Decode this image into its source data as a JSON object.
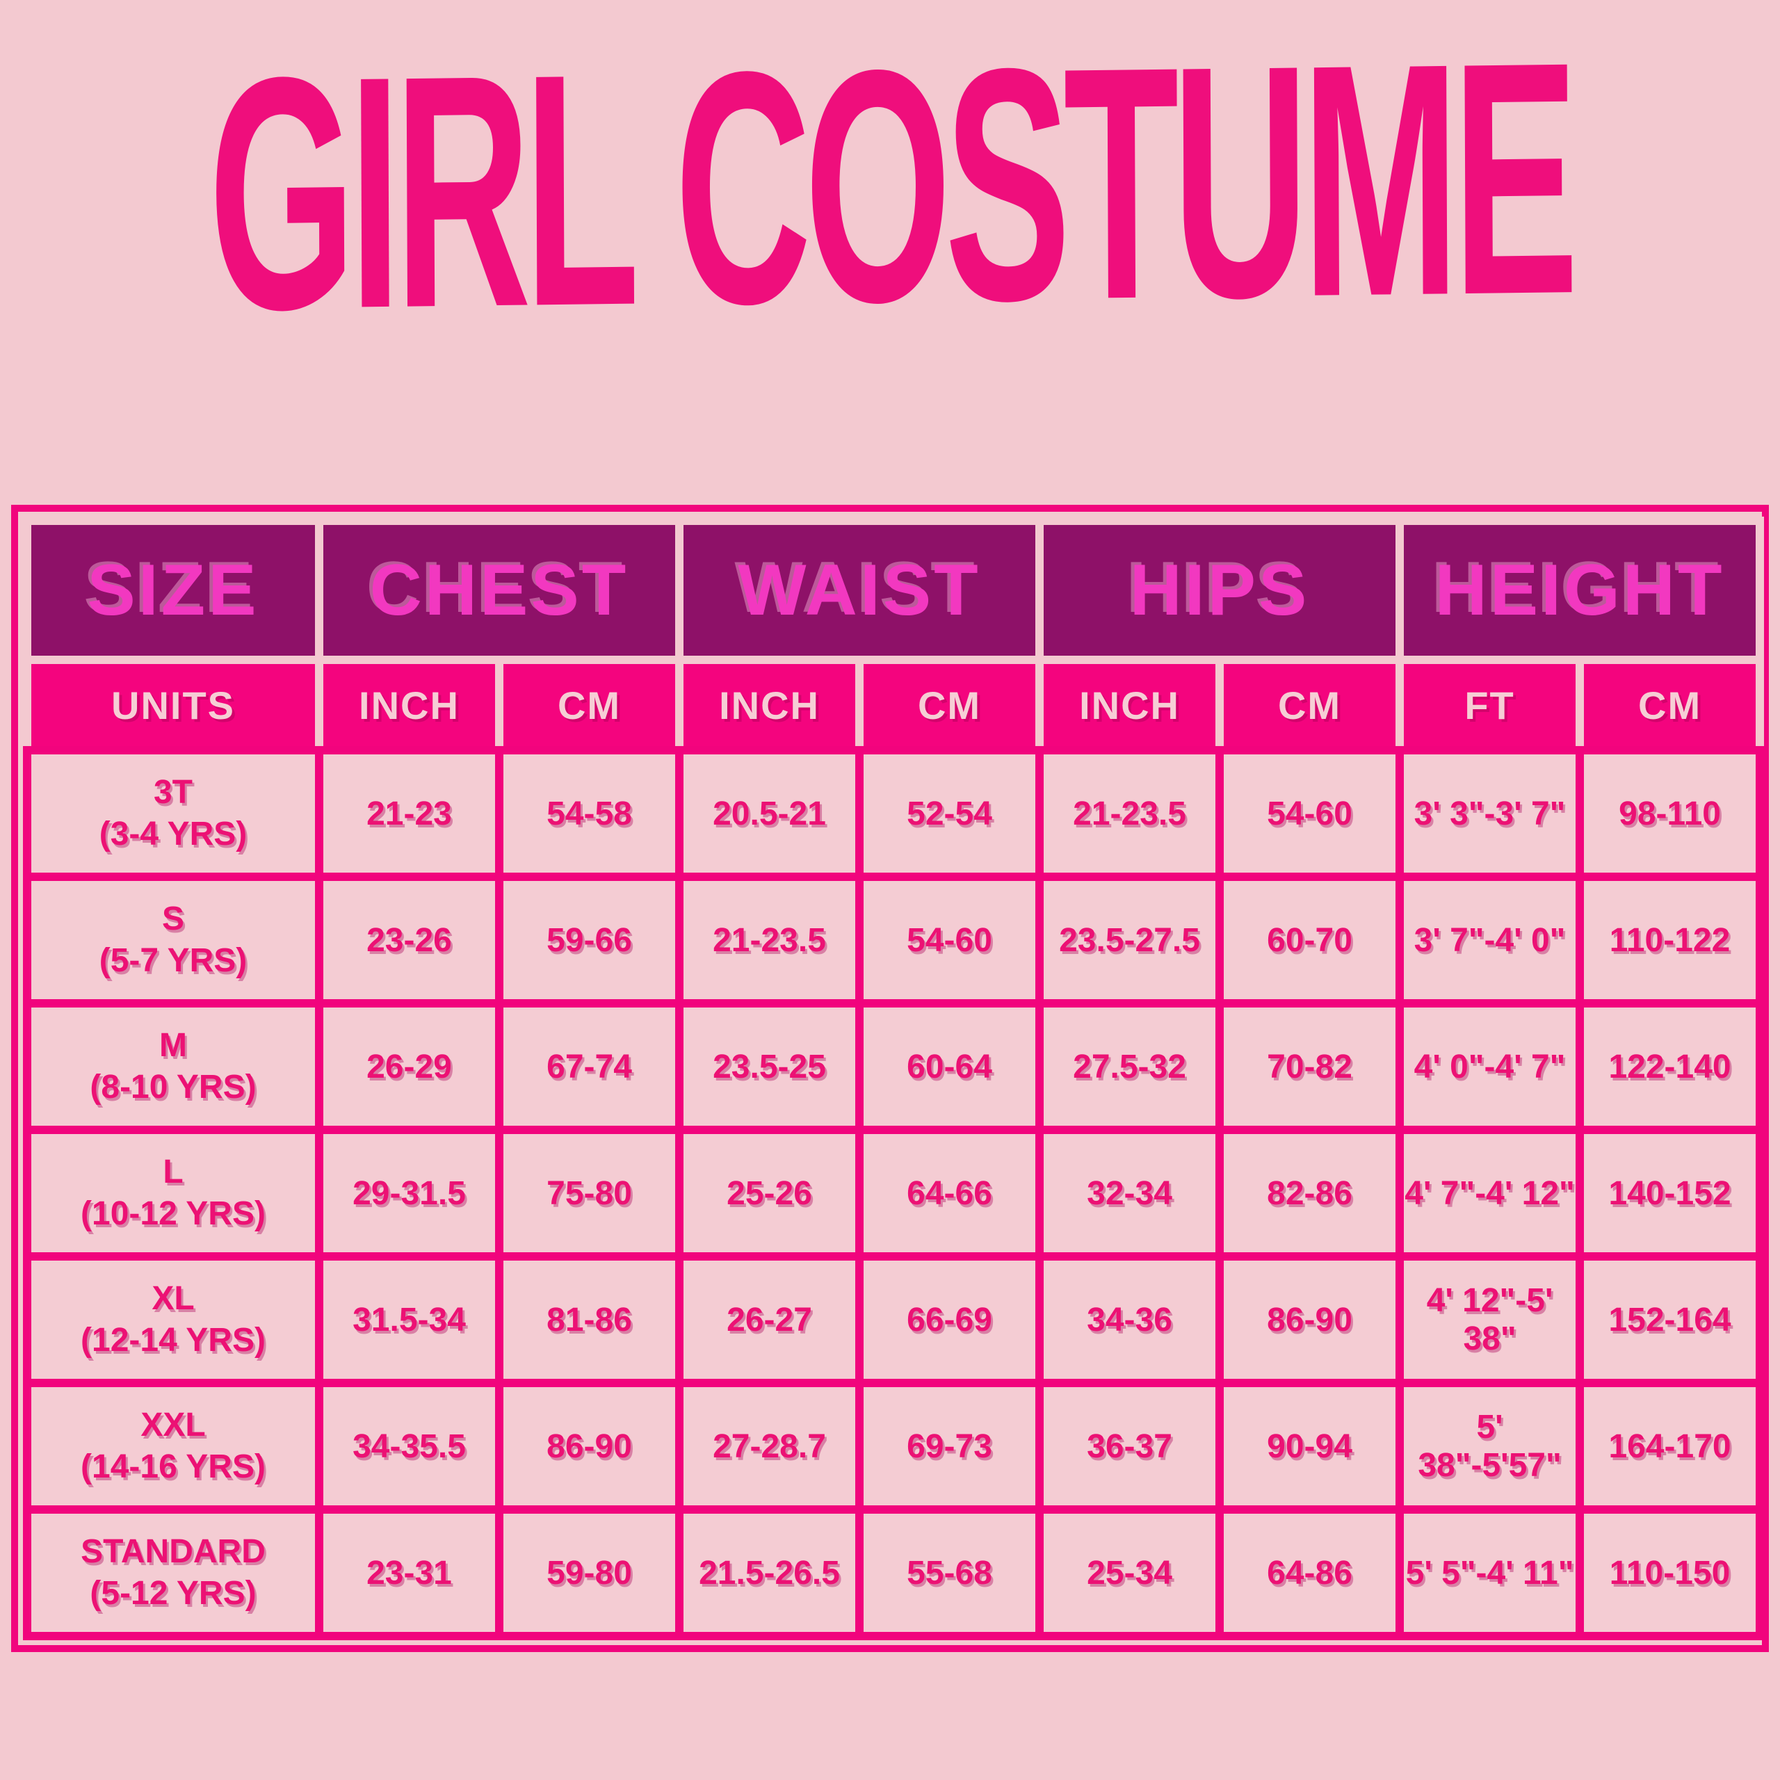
{
  "title": {
    "text": "GIRL COSTUME"
  },
  "colors": {
    "page_background": "#f3c9d0",
    "title_pink": "#ef0e7c",
    "grid_pink": "#f1047d",
    "header_purple": "#8e1168",
    "header_text_pink": "#f238c0",
    "units_row_pink": "#f4047e",
    "units_text_light_pink": "#f6ced5",
    "cell_background": "#f4ccd3",
    "cell_text_pink": "#ec1174"
  },
  "chart_data": {
    "type": "table",
    "title": "GIRL COSTUME",
    "column_groups": [
      "SIZE",
      "CHEST",
      "WAIST",
      "HIPS",
      "HEIGHT"
    ],
    "units_row": [
      "UNITS",
      "INCH",
      "CM",
      "INCH",
      "CM",
      "INCH",
      "CM",
      "FT",
      "CM"
    ],
    "rows": [
      {
        "size": "3T",
        "age_range": "(3-4 YRS)",
        "values": [
          "21-23",
          "54-58",
          "20.5-21",
          "52-54",
          "21-23.5",
          "54-60",
          "3' 3\"-3' 7\"",
          "98-110"
        ]
      },
      {
        "size": "S",
        "age_range": "(5-7 YRS)",
        "values": [
          "23-26",
          "59-66",
          "21-23.5",
          "54-60",
          "23.5-27.5",
          "60-70",
          "3' 7\"-4' 0\"",
          "110-122"
        ]
      },
      {
        "size": "M",
        "age_range": "(8-10 YRS)",
        "values": [
          "26-29",
          "67-74",
          "23.5-25",
          "60-64",
          "27.5-32",
          "70-82",
          "4' 0\"-4' 7\"",
          "122-140"
        ]
      },
      {
        "size": "L",
        "age_range": "(10-12 YRS)",
        "values": [
          "29-31.5",
          "75-80",
          "25-26",
          "64-66",
          "32-34",
          "82-86",
          "4' 7\"-4' 12\"",
          "140-152"
        ]
      },
      {
        "size": "XL",
        "age_range": "(12-14 YRS)",
        "values": [
          "31.5-34",
          "81-86",
          "26-27",
          "66-69",
          "34-36",
          "86-90",
          "4' 12\"-5' 38\"",
          "152-164"
        ]
      },
      {
        "size": "XXL",
        "age_range": "(14-16 YRS)",
        "values": [
          "34-35.5",
          "86-90",
          "27-28.7",
          "69-73",
          "36-37",
          "90-94",
          "5' 38\"-5'57\"",
          "164-170"
        ]
      },
      {
        "size": "STANDARD",
        "age_range": "(5-12 YRS)",
        "values": [
          "23-31",
          "59-80",
          "21.5-26.5",
          "55-68",
          "25-34",
          "64-86",
          "5' 5\"-4' 11\"",
          "110-150"
        ]
      }
    ]
  }
}
